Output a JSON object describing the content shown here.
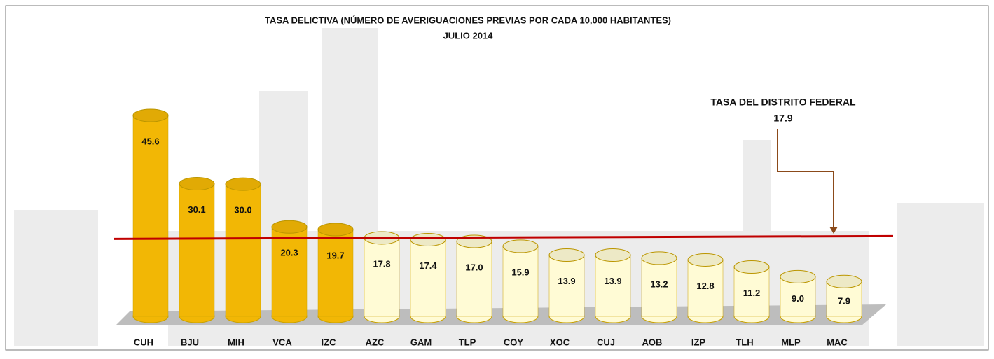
{
  "chart_data": {
    "type": "bar",
    "title": "TASA DELICTIVA (NÚMERO DE  AVERIGUACIONES PREVIAS POR CADA 10,000 HABITANTES)",
    "subtitle": "JULIO 2014",
    "categories": [
      "CUH",
      "BJU",
      "MIH",
      "VCA",
      "IZC",
      "AZC",
      "GAM",
      "TLP",
      "COY",
      "XOC",
      "CUJ",
      "AOB",
      "IZP",
      "TLH",
      "MLP",
      "MAC"
    ],
    "values": [
      45.6,
      30.1,
      30.0,
      20.3,
      19.7,
      17.8,
      17.4,
      17.0,
      15.9,
      13.9,
      13.9,
      13.2,
      12.8,
      11.2,
      9.0,
      7.9
    ],
    "value_labels": [
      "45.6",
      "30.1",
      "30.0",
      "20.3",
      "19.7",
      "17.8",
      "17.4",
      "17.0",
      "15.9",
      "13.9",
      "13.9",
      "13.2",
      "12.8",
      "11.2",
      "9.0",
      "7.9"
    ],
    "colors": [
      "#f2b705",
      "#f2b705",
      "#f2b705",
      "#f2b705",
      "#f2b705",
      "#fffbd5",
      "#fffbd5",
      "#fffbd5",
      "#fffbd5",
      "#fffbd5",
      "#fffbd5",
      "#fffbd5",
      "#fffbd5",
      "#fffbd5",
      "#fffbd5",
      "#fffbd5"
    ],
    "reference_line": {
      "value": 17.9,
      "label": "TASA DEL DISTRITO FEDERAL",
      "color": "#c00000"
    }
  }
}
